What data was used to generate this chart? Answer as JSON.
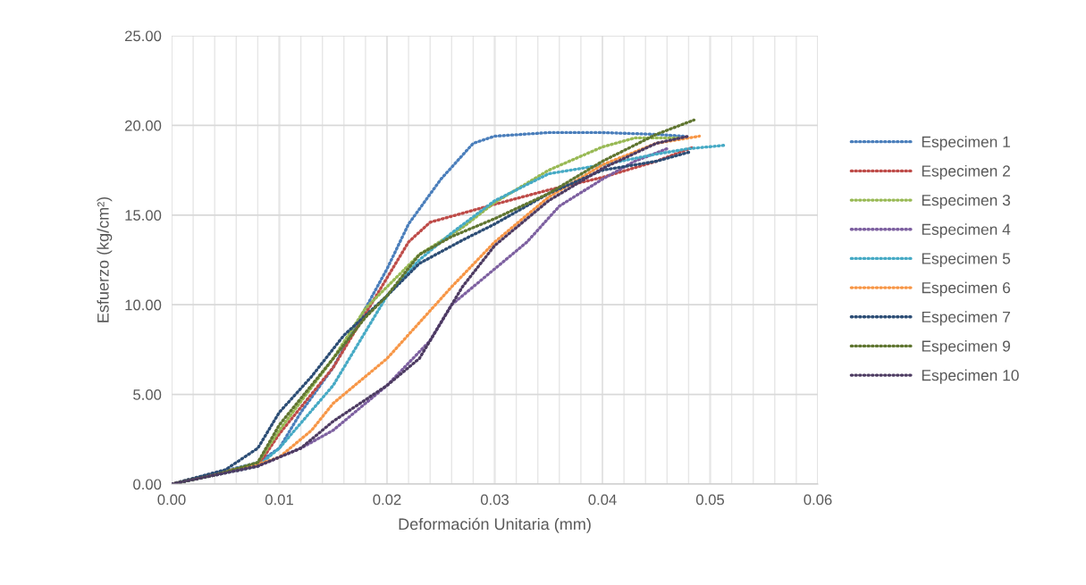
{
  "chart_data": {
    "type": "line",
    "xlabel": "Deformación Unitaria (mm)",
    "ylabel": "Esfuerzo (kg/cm²)",
    "xlim": [
      0,
      0.06
    ],
    "ylim": [
      0,
      25
    ],
    "xticks": [
      {
        "value": 0,
        "label": "0.00"
      },
      {
        "value": 0.002,
        "label": null
      },
      {
        "value": 0.004,
        "label": null
      },
      {
        "value": 0.006,
        "label": null
      },
      {
        "value": 0.008,
        "label": null
      },
      {
        "value": 0.01,
        "label": "0.01"
      },
      {
        "value": 0.012,
        "label": null
      },
      {
        "value": 0.014,
        "label": null
      },
      {
        "value": 0.016,
        "label": null
      },
      {
        "value": 0.018,
        "label": null
      },
      {
        "value": 0.02,
        "label": "0.02"
      },
      {
        "value": 0.022,
        "label": null
      },
      {
        "value": 0.024,
        "label": null
      },
      {
        "value": 0.026,
        "label": null
      },
      {
        "value": 0.028,
        "label": null
      },
      {
        "value": 0.03,
        "label": "0.03"
      },
      {
        "value": 0.032,
        "label": null
      },
      {
        "value": 0.034,
        "label": null
      },
      {
        "value": 0.036,
        "label": null
      },
      {
        "value": 0.038,
        "label": null
      },
      {
        "value": 0.04,
        "label": "0.04"
      },
      {
        "value": 0.042,
        "label": null
      },
      {
        "value": 0.044,
        "label": null
      },
      {
        "value": 0.046,
        "label": null
      },
      {
        "value": 0.048,
        "label": null
      },
      {
        "value": 0.05,
        "label": "0.05"
      },
      {
        "value": 0.052,
        "label": null
      },
      {
        "value": 0.054,
        "label": null
      },
      {
        "value": 0.056,
        "label": null
      },
      {
        "value": 0.058,
        "label": null
      },
      {
        "value": 0.06,
        "label": "0.06"
      }
    ],
    "yticks": [
      {
        "value": 0,
        "label": "0.00"
      },
      {
        "value": 5,
        "label": "5.00"
      },
      {
        "value": 10,
        "label": "10.00"
      },
      {
        "value": 15,
        "label": "15.00"
      },
      {
        "value": 20,
        "label": "20.00"
      },
      {
        "value": 25,
        "label": "25.00"
      }
    ],
    "grid": true,
    "legend": "right",
    "marker": "none",
    "line_style": "dotted",
    "series": [
      {
        "name": "Especimen 1",
        "color": "#4a7ebb",
        "x": [
          0,
          0.004,
          0.008,
          0.01,
          0.012,
          0.015,
          0.018,
          0.02,
          0.022,
          0.025,
          0.028,
          0.03,
          0.035,
          0.04,
          0.045,
          0.0475
        ],
        "values": [
          0,
          0.6,
          1.2,
          2,
          4,
          6.5,
          9.8,
          12,
          14.5,
          17,
          19,
          19.4,
          19.6,
          19.6,
          19.5,
          19.4
        ]
      },
      {
        "name": "Especimen 2",
        "color": "#be4b48",
        "x": [
          0,
          0.004,
          0.008,
          0.01,
          0.015,
          0.018,
          0.02,
          0.022,
          0.024,
          0.027,
          0.03,
          0.035,
          0.04,
          0.045,
          0.0485
        ],
        "values": [
          0,
          0.5,
          1,
          2.8,
          6.5,
          9.5,
          11.5,
          13.5,
          14.6,
          15.1,
          15.6,
          16.4,
          17.1,
          18,
          18.8
        ]
      },
      {
        "name": "Especimen 3",
        "color": "#98b954",
        "x": [
          0,
          0.004,
          0.008,
          0.01,
          0.015,
          0.018,
          0.02,
          0.023,
          0.027,
          0.03,
          0.035,
          0.04,
          0.043,
          0.047
        ],
        "values": [
          0,
          0.5,
          1.2,
          3,
          7,
          9.8,
          11,
          12.8,
          14.3,
          15.7,
          17.5,
          18.8,
          19.3,
          19.3
        ]
      },
      {
        "name": "Especimen 4",
        "color": "#7d60a0",
        "x": [
          0,
          0.004,
          0.008,
          0.012,
          0.015,
          0.02,
          0.024,
          0.026,
          0.03,
          0.033,
          0.036,
          0.04,
          0.043,
          0.046
        ],
        "values": [
          0,
          0.5,
          1,
          2,
          3,
          5.5,
          8,
          10,
          12,
          13.5,
          15.5,
          17,
          18,
          18.7
        ]
      },
      {
        "name": "Especimen 5",
        "color": "#46aac5",
        "x": [
          0,
          0.004,
          0.008,
          0.01,
          0.015,
          0.017,
          0.02,
          0.023,
          0.026,
          0.03,
          0.035,
          0.04,
          0.045,
          0.048,
          0.0515
        ],
        "values": [
          0,
          0.5,
          1,
          2,
          5.5,
          7.5,
          10.5,
          12.5,
          14,
          15.8,
          17.3,
          17.8,
          18.4,
          18.7,
          18.9
        ]
      },
      {
        "name": "Especimen 6",
        "color": "#f79646",
        "x": [
          0,
          0.004,
          0.008,
          0.01,
          0.013,
          0.015,
          0.02,
          0.023,
          0.026,
          0.03,
          0.035,
          0.04,
          0.045,
          0.049
        ],
        "values": [
          0,
          0.6,
          1.1,
          1.5,
          3,
          4.5,
          7,
          9,
          11,
          13.5,
          16,
          17.8,
          19,
          19.4
        ]
      },
      {
        "name": "Especimen 7",
        "color": "#2c4d75",
        "x": [
          0,
          0.005,
          0.008,
          0.01,
          0.013,
          0.016,
          0.02,
          0.023,
          0.027,
          0.03,
          0.035,
          0.04,
          0.045,
          0.048
        ],
        "values": [
          0,
          0.8,
          2,
          4,
          6,
          8.3,
          10.5,
          12.3,
          13.6,
          14.5,
          16.2,
          17.5,
          18,
          18.5
        ]
      },
      {
        "name": "Especimen 9",
        "color": "#5f7530",
        "x": [
          0,
          0.004,
          0.008,
          0.01,
          0.015,
          0.018,
          0.02,
          0.023,
          0.026,
          0.03,
          0.035,
          0.04,
          0.045,
          0.0485
        ],
        "values": [
          0,
          0.5,
          1.2,
          3.3,
          7,
          9.3,
          10.5,
          12.8,
          13.8,
          14.8,
          16.2,
          18,
          19.5,
          20.3
        ]
      },
      {
        "name": "Especimen 10",
        "color": "#4d3b62",
        "x": [
          0,
          0.004,
          0.008,
          0.012,
          0.015,
          0.02,
          0.023,
          0.025,
          0.027,
          0.03,
          0.035,
          0.04,
          0.045,
          0.048
        ],
        "values": [
          0,
          0.5,
          1,
          2,
          3.5,
          5.5,
          7,
          9,
          11,
          13.3,
          15.8,
          17.6,
          19,
          19.4
        ]
      }
    ]
  }
}
